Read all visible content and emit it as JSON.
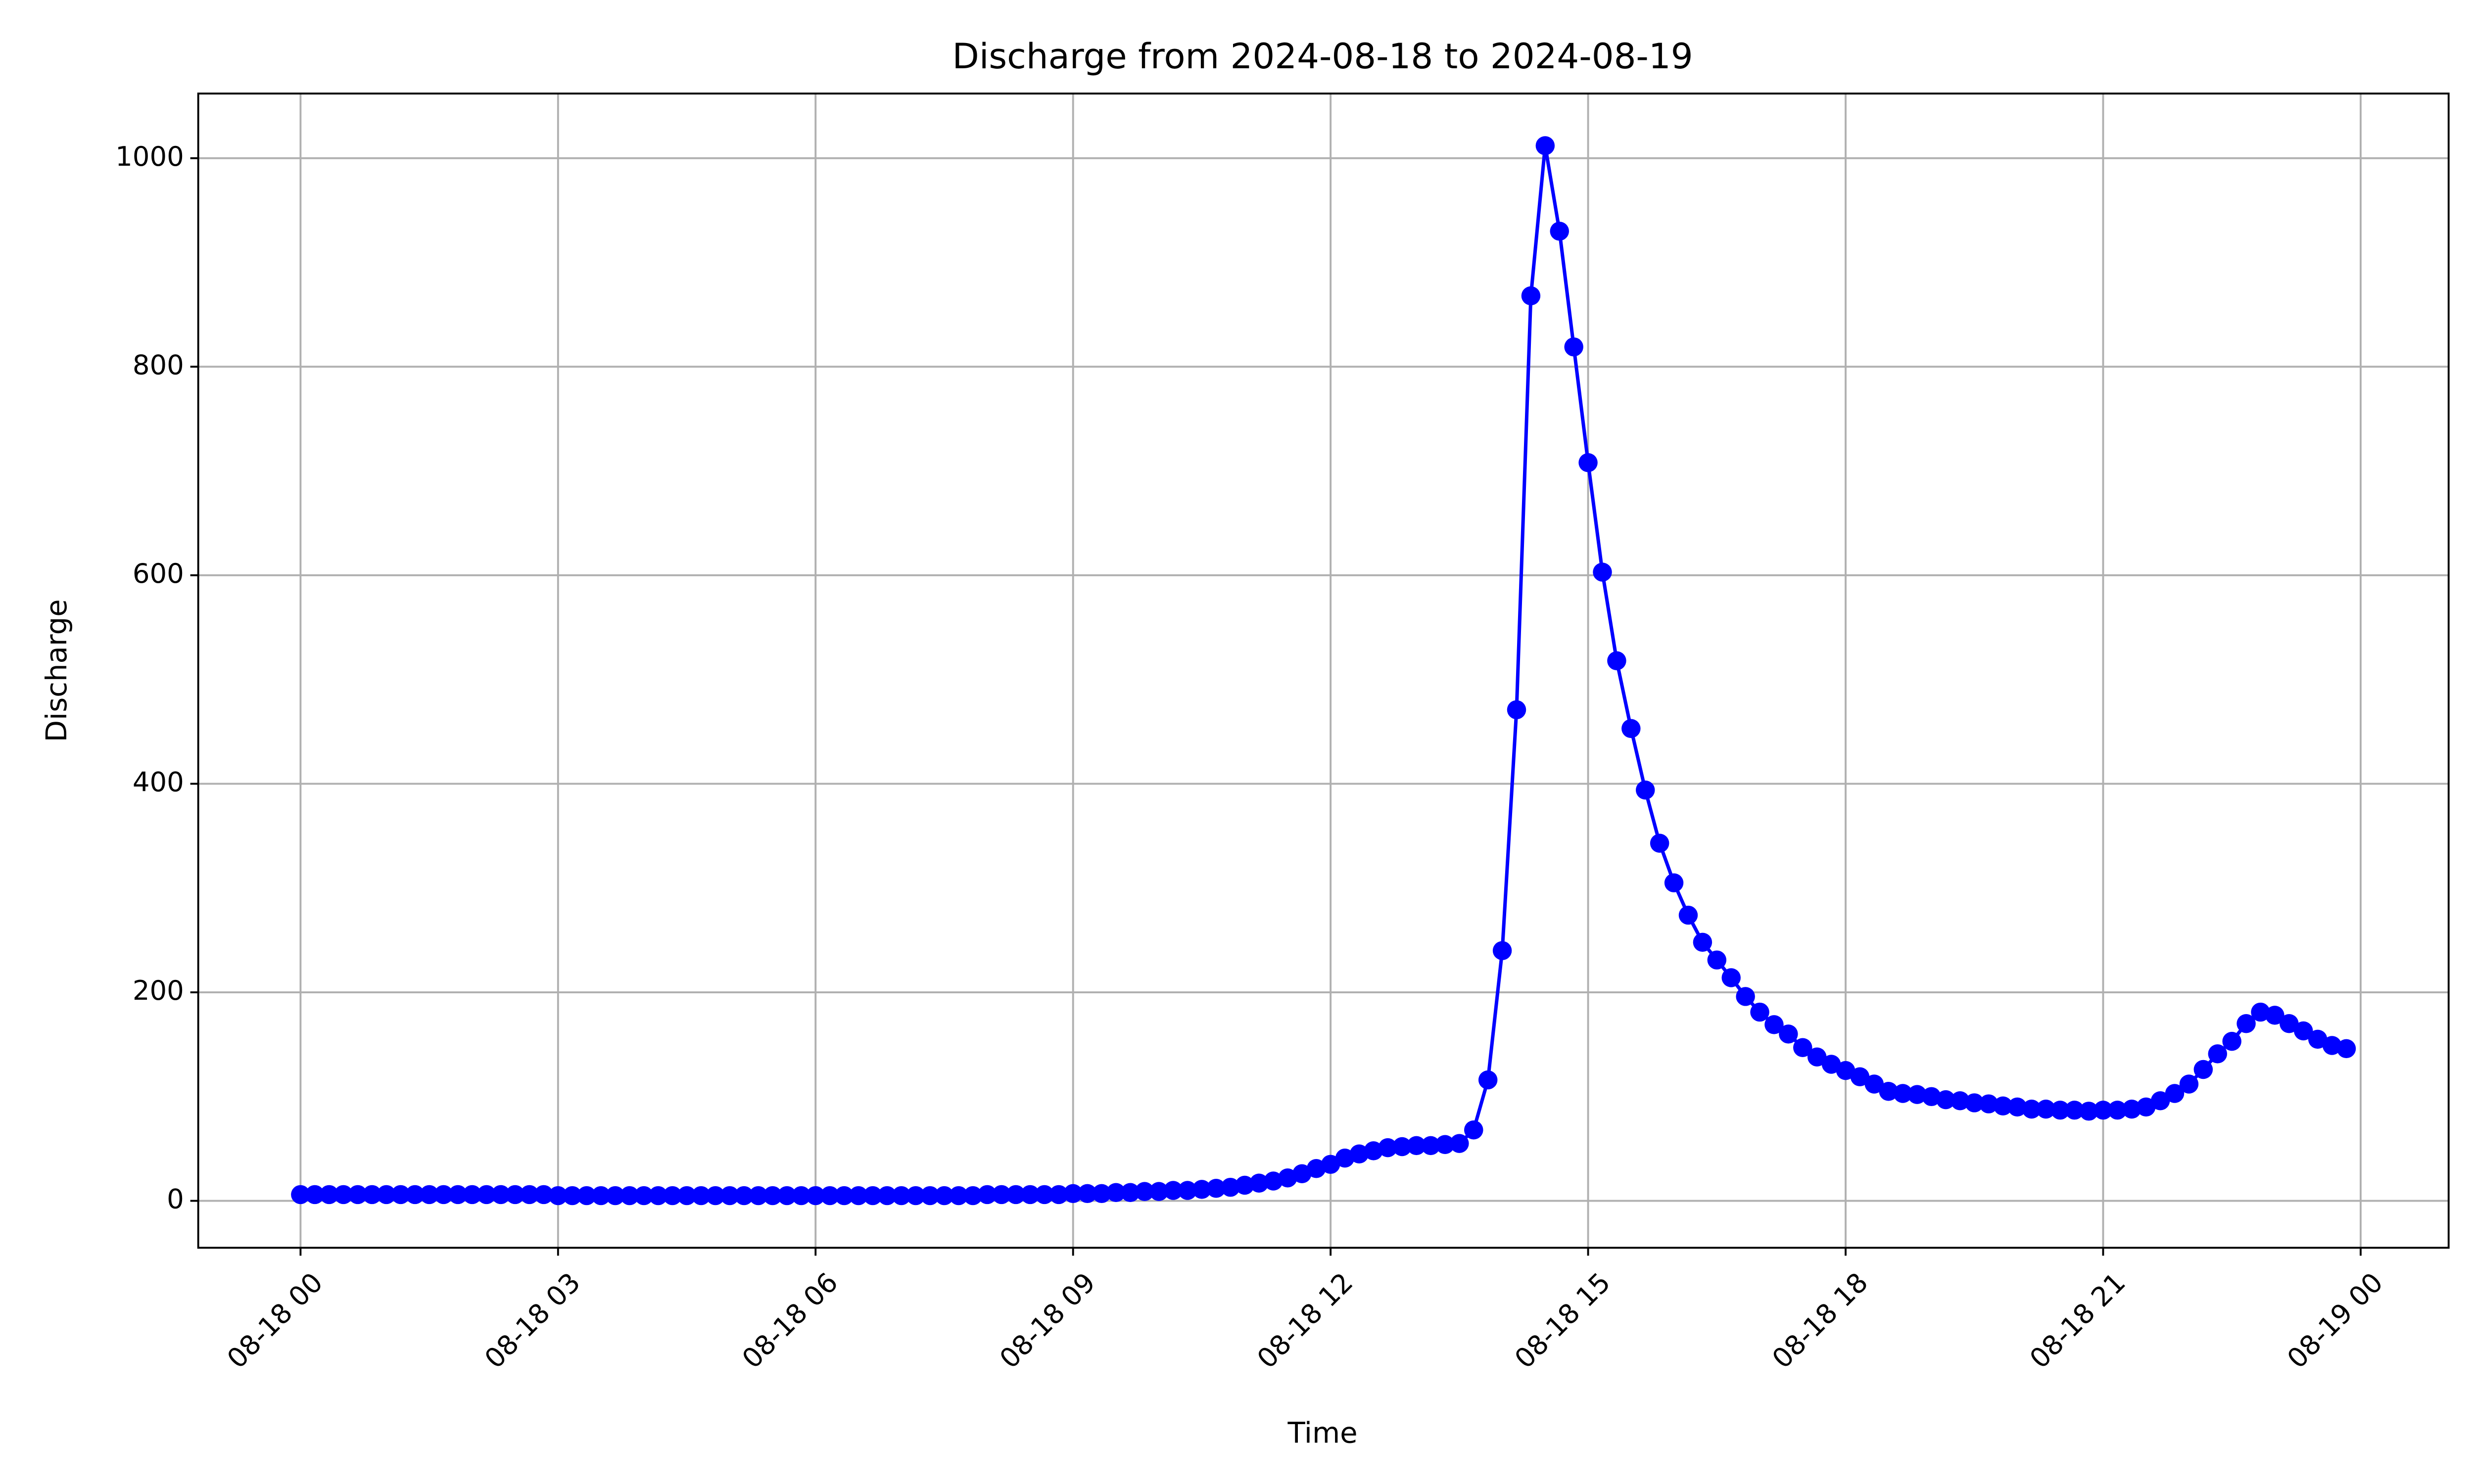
{
  "chart_data": {
    "type": "line",
    "title": "Discharge from 2024-08-18 to 2024-08-19",
    "xlabel": "Time",
    "ylabel": "Discharge",
    "x": [
      "2024-08-18T00:00",
      "2024-08-18T00:10",
      "2024-08-18T00:20",
      "2024-08-18T00:30",
      "2024-08-18T00:40",
      "2024-08-18T00:50",
      "2024-08-18T01:00",
      "2024-08-18T01:10",
      "2024-08-18T01:20",
      "2024-08-18T01:30",
      "2024-08-18T01:40",
      "2024-08-18T01:50",
      "2024-08-18T02:00",
      "2024-08-18T02:10",
      "2024-08-18T02:20",
      "2024-08-18T02:30",
      "2024-08-18T02:40",
      "2024-08-18T02:50",
      "2024-08-18T03:00",
      "2024-08-18T03:10",
      "2024-08-18T03:20",
      "2024-08-18T03:30",
      "2024-08-18T03:40",
      "2024-08-18T03:50",
      "2024-08-18T04:00",
      "2024-08-18T04:10",
      "2024-08-18T04:20",
      "2024-08-18T04:30",
      "2024-08-18T04:40",
      "2024-08-18T04:50",
      "2024-08-18T05:00",
      "2024-08-18T05:10",
      "2024-08-18T05:20",
      "2024-08-18T05:30",
      "2024-08-18T05:40",
      "2024-08-18T05:50",
      "2024-08-18T06:00",
      "2024-08-18T06:10",
      "2024-08-18T06:20",
      "2024-08-18T06:30",
      "2024-08-18T06:40",
      "2024-08-18T06:50",
      "2024-08-18T07:00",
      "2024-08-18T07:10",
      "2024-08-18T07:20",
      "2024-08-18T07:30",
      "2024-08-18T07:40",
      "2024-08-18T07:50",
      "2024-08-18T08:00",
      "2024-08-18T08:10",
      "2024-08-18T08:20",
      "2024-08-18T08:30",
      "2024-08-18T08:40",
      "2024-08-18T08:50",
      "2024-08-18T09:00",
      "2024-08-18T09:10",
      "2024-08-18T09:20",
      "2024-08-18T09:30",
      "2024-08-18T09:40",
      "2024-08-18T09:50",
      "2024-08-18T10:00",
      "2024-08-18T10:10",
      "2024-08-18T10:20",
      "2024-08-18T10:30",
      "2024-08-18T10:40",
      "2024-08-18T10:50",
      "2024-08-18T11:00",
      "2024-08-18T11:10",
      "2024-08-18T11:20",
      "2024-08-18T11:30",
      "2024-08-18T11:40",
      "2024-08-18T11:50",
      "2024-08-18T12:00",
      "2024-08-18T12:10",
      "2024-08-18T12:20",
      "2024-08-18T12:30",
      "2024-08-18T12:40",
      "2024-08-18T12:50",
      "2024-08-18T13:00",
      "2024-08-18T13:10",
      "2024-08-18T13:20",
      "2024-08-18T13:30",
      "2024-08-18T13:40",
      "2024-08-18T13:50",
      "2024-08-18T14:00",
      "2024-08-18T14:10",
      "2024-08-18T14:20",
      "2024-08-18T14:30",
      "2024-08-18T14:40",
      "2024-08-18T14:50",
      "2024-08-18T15:00",
      "2024-08-18T15:10",
      "2024-08-18T15:20",
      "2024-08-18T15:30",
      "2024-08-18T15:40",
      "2024-08-18T15:50",
      "2024-08-18T16:00",
      "2024-08-18T16:10",
      "2024-08-18T16:20",
      "2024-08-18T16:30",
      "2024-08-18T16:40",
      "2024-08-18T16:50",
      "2024-08-18T17:00",
      "2024-08-18T17:10",
      "2024-08-18T17:20",
      "2024-08-18T17:30",
      "2024-08-18T17:40",
      "2024-08-18T17:50",
      "2024-08-18T18:00",
      "2024-08-18T18:10",
      "2024-08-18T18:20",
      "2024-08-18T18:30",
      "2024-08-18T18:40",
      "2024-08-18T18:50",
      "2024-08-18T19:00",
      "2024-08-18T19:10",
      "2024-08-18T19:20",
      "2024-08-18T19:30",
      "2024-08-18T19:40",
      "2024-08-18T19:50",
      "2024-08-18T20:00",
      "2024-08-18T20:10",
      "2024-08-18T20:20",
      "2024-08-18T20:30",
      "2024-08-18T20:40",
      "2024-08-18T20:50",
      "2024-08-18T21:00",
      "2024-08-18T21:10",
      "2024-08-18T21:20",
      "2024-08-18T21:30",
      "2024-08-18T21:40",
      "2024-08-18T21:50",
      "2024-08-18T22:00",
      "2024-08-18T22:10",
      "2024-08-18T22:20",
      "2024-08-18T22:30",
      "2024-08-18T22:40",
      "2024-08-18T22:50",
      "2024-08-18T23:00",
      "2024-08-18T23:10",
      "2024-08-18T23:20",
      "2024-08-18T23:30",
      "2024-08-18T23:40",
      "2024-08-18T23:50"
    ],
    "series": [
      {
        "name": "Discharge",
        "color": "#0000ff",
        "values": [
          6,
          6,
          6,
          6,
          6,
          6,
          6,
          6,
          6,
          6,
          6,
          6,
          6,
          6,
          6,
          6,
          6,
          6,
          5,
          5,
          5,
          5,
          5,
          5,
          5,
          5,
          5,
          5,
          5,
          5,
          5,
          5,
          5,
          5,
          5,
          5,
          5,
          5,
          5,
          5,
          5,
          5,
          5,
          5,
          5,
          5,
          5,
          5,
          6,
          6,
          6,
          6,
          6,
          6,
          7,
          7,
          7,
          8,
          8,
          9,
          9,
          10,
          10,
          11,
          12,
          13,
          15,
          17,
          19,
          22,
          26,
          31,
          35,
          41,
          45,
          48,
          51,
          52,
          53,
          53,
          54,
          55,
          68,
          116,
          240,
          471,
          868,
          1012,
          930,
          819,
          708,
          603,
          518,
          453,
          394,
          343,
          305,
          274,
          248,
          231,
          214,
          196,
          181,
          169,
          160,
          147,
          138,
          131,
          125,
          119,
          112,
          105,
          103,
          102,
          100,
          97,
          96,
          94,
          93,
          91,
          90,
          88,
          88,
          87,
          87,
          86,
          87,
          87,
          88,
          90,
          96,
          103,
          112,
          126,
          141,
          153,
          170,
          181,
          178,
          170,
          163,
          155,
          149,
          146
        ]
      }
    ],
    "xlim": [
      "2024-08-17T22:48:30",
      "2024-08-19T01:01:30"
    ],
    "xticks": [
      {
        "value": "2024-08-18T00:00",
        "label": "08-18 00"
      },
      {
        "value": "2024-08-18T03:00",
        "label": "08-18 03"
      },
      {
        "value": "2024-08-18T06:00",
        "label": "08-18 06"
      },
      {
        "value": "2024-08-18T09:00",
        "label": "08-18 09"
      },
      {
        "value": "2024-08-18T12:00",
        "label": "08-18 12"
      },
      {
        "value": "2024-08-18T15:00",
        "label": "08-18 15"
      },
      {
        "value": "2024-08-18T18:00",
        "label": "08-18 18"
      },
      {
        "value": "2024-08-18T21:00",
        "label": "08-18 21"
      },
      {
        "value": "2024-08-19T00:00",
        "label": "08-19 00"
      }
    ],
    "ylim": [
      -45,
      1062
    ],
    "yticks": [
      0,
      200,
      400,
      600,
      800,
      1000
    ],
    "grid": true
  }
}
